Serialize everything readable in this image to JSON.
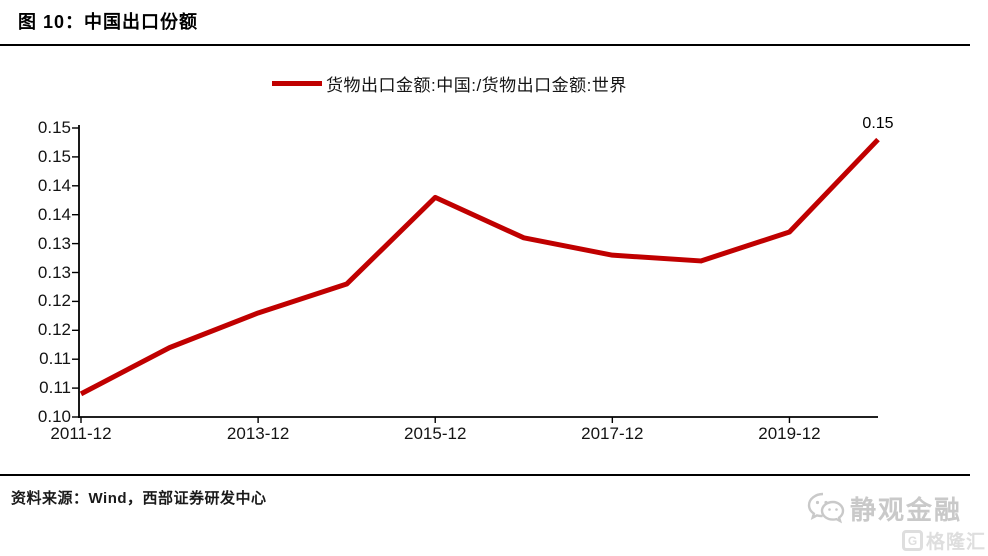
{
  "figure": {
    "title": "图 10：中国出口份额",
    "source_note": "资料来源：Wind，西部证券研发中心"
  },
  "legend": {
    "label": "货物出口金额:中国:/货物出口金额:世界",
    "color": "#c00000"
  },
  "annotation": {
    "end_value_label": "0.15"
  },
  "watermark": {
    "brand": "静观金融",
    "badge": "格隆汇",
    "icons": [
      "wechat-icon",
      "gelonghui-g-icon"
    ],
    "color": "#c9c9c9"
  },
  "colors": {
    "line": "#c00000",
    "axis": "#000000",
    "text": "#141414"
  },
  "chart_data": {
    "type": "line",
    "title": "中国出口份额",
    "xlabel": "",
    "ylabel": "",
    "grid": false,
    "legend_position": "top-center",
    "ylim": [
      0.1,
      0.15
    ],
    "x": [
      "2011-12",
      "2012-12",
      "2013-12",
      "2014-12",
      "2015-12",
      "2016-12",
      "2017-12",
      "2018-12",
      "2019-12",
      "2020-12"
    ],
    "series": [
      {
        "name": "货物出口金额:中国:/货物出口金额:世界",
        "color": "#c00000",
        "values": [
          0.104,
          0.112,
          0.118,
          0.123,
          0.138,
          0.131,
          0.128,
          0.127,
          0.132,
          0.148
        ]
      }
    ],
    "x_tick_labels": [
      "2011-12",
      "2013-12",
      "2015-12",
      "2017-12",
      "2019-12"
    ],
    "x_tick_indices": [
      0,
      2,
      4,
      6,
      8
    ],
    "y_ticks": [
      {
        "value": 0.1,
        "label": "0.10"
      },
      {
        "value": 0.105,
        "label": "0.11"
      },
      {
        "value": 0.11,
        "label": "0.11"
      },
      {
        "value": 0.115,
        "label": "0.12"
      },
      {
        "value": 0.12,
        "label": "0.12"
      },
      {
        "value": 0.125,
        "label": "0.13"
      },
      {
        "value": 0.13,
        "label": "0.13"
      },
      {
        "value": 0.135,
        "label": "0.14"
      },
      {
        "value": 0.14,
        "label": "0.14"
      },
      {
        "value": 0.145,
        "label": "0.15"
      },
      {
        "value": 0.15,
        "label": "0.15"
      }
    ],
    "end_point_annotation": "0.15"
  }
}
